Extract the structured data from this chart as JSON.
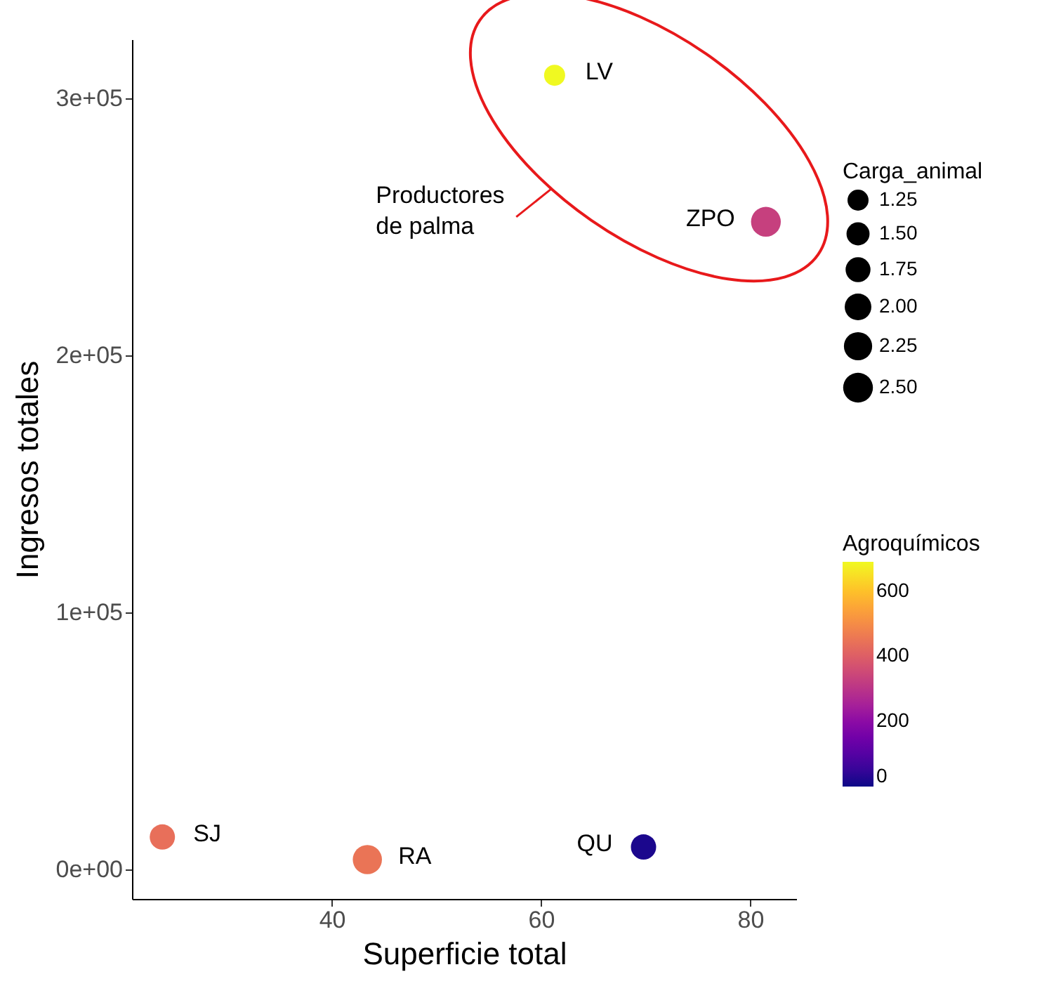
{
  "chart_data": {
    "type": "bubble",
    "xlabel": "Superficie total",
    "ylabel": "Ingresos totales",
    "x": [
      61.3,
      81.5,
      23.8,
      43.4,
      69.8
    ],
    "values": [
      309000,
      252000,
      12600,
      3800,
      8700
    ],
    "sizes": [
      1.25,
      2.5,
      1.8,
      2.4,
      1.8
    ],
    "size_legend": [
      1.25,
      {
        "value": 1.5,
        "label": "1.50"
      },
      1.75,
      {
        "value": 2.0,
        "label": "2.00"
      },
      2.25,
      {
        "value": 2.5,
        "label": "2.50"
      }
    ],
    "legend_title": "Carga_animal",
    "cvalues": [
      690,
      330,
      440,
      450,
      15
    ],
    "clabel": "Agroquímicos",
    "clim": [
      0,
      690
    ],
    "cticks": [
      0,
      200,
      400,
      600
    ],
    "xlim": [
      20.9,
      84.4
    ],
    "xticks": [
      40,
      60,
      80
    ],
    "ylim": [
      -11500,
      323000
    ],
    "yticks": [
      {
        "value": 0,
        "label": "0e+00"
      },
      {
        "value": 100000,
        "label": "1e+05"
      },
      {
        "value": 200000,
        "label": "2e+05"
      },
      {
        "value": 300000,
        "label": "3e+05"
      }
    ],
    "marker": "circle",
    "grid": false,
    "annotations": [
      {
        "text": "LV",
        "x": 61.3,
        "y": 309000
      },
      {
        "text": "ZPO",
        "x": 81.5,
        "y": 252000
      },
      {
        "text": "SJ",
        "x": 23.8,
        "y": 12600
      },
      {
        "text": "RA",
        "x": 43.4,
        "y": 3800
      },
      {
        "text": "QU",
        "x": 69.8,
        "y": 8700
      },
      "Productores\nde palma"
    ]
  }
}
